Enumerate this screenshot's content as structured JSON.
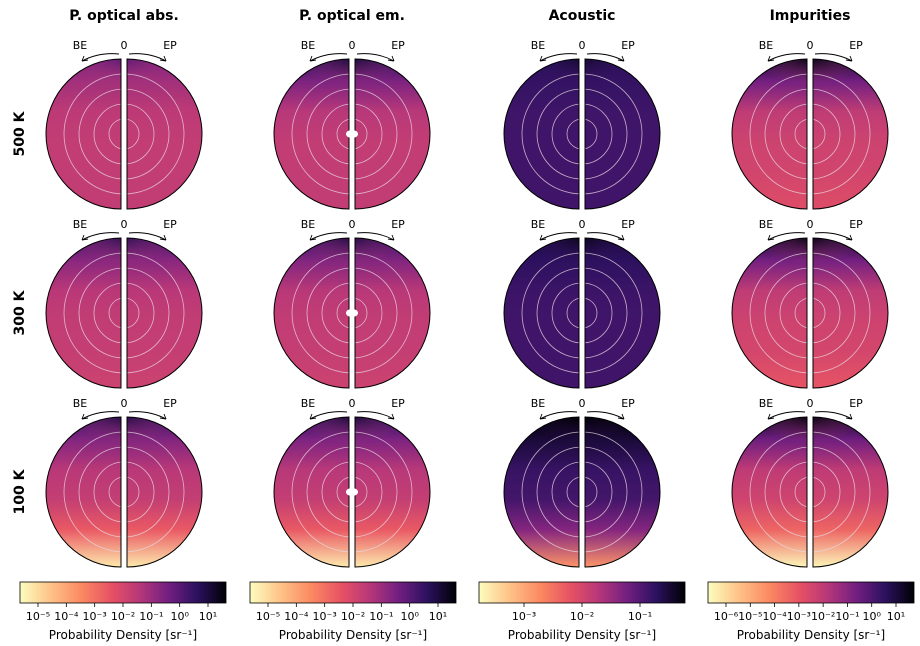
{
  "chart_data": {
    "type": "heatmap",
    "description_labels": {
      "direction_left": "BE",
      "direction_zero": "0",
      "direction_right": "EP"
    },
    "columns": [
      {
        "title": "P. optical abs.",
        "colorbar_ticks": [
          "10⁻⁵",
          "10⁻⁴",
          "10⁻³",
          "10⁻²",
          "10⁻¹",
          "10⁰",
          "10¹"
        ],
        "colorbar_label": "Probability Density [sr⁻¹]"
      },
      {
        "title": "P. optical em.",
        "colorbar_ticks": [
          "10⁻⁵",
          "10⁻⁴",
          "10⁻³",
          "10⁻²",
          "10⁻¹",
          "10⁰",
          "10¹"
        ],
        "colorbar_label": "Probability Density [sr⁻¹]"
      },
      {
        "title": "Acoustic",
        "colorbar_ticks": [
          "10⁻³",
          "10⁻²",
          "10⁻¹"
        ],
        "colorbar_label": "Probability Density [sr⁻¹]"
      },
      {
        "title": "Impurities",
        "colorbar_ticks": [
          "10⁻⁶",
          "10⁻⁵",
          "10⁻⁴",
          "10⁻³",
          "10⁻²",
          "10⁻¹",
          "10⁰",
          "10¹"
        ],
        "colorbar_label": "Probability Density [sr⁻¹]"
      }
    ],
    "rows": [
      {
        "label": "500 K"
      },
      {
        "label": "300 K"
      },
      {
        "label": "100 K"
      }
    ],
    "colormap": "magma_r",
    "colors": {
      "low": "#fcfdbf",
      "mid": "#b73779",
      "high": "#000004",
      "grid": "#e8d6e0"
    },
    "panel_levels": [
      [
        {
          "base": 0.55,
          "top": 0.15,
          "bottom": 0.0
        },
        {
          "base": 0.55,
          "top": 0.3,
          "bottom": 0.0
        },
        {
          "base": 0.82,
          "top": 0.05,
          "bottom": 0.0
        },
        {
          "base": 0.52,
          "top": 0.4,
          "bottom": -0.05
        }
      ],
      [
        {
          "base": 0.55,
          "top": 0.25,
          "bottom": -0.03
        },
        {
          "base": 0.55,
          "top": 0.28,
          "bottom": -0.03
        },
        {
          "base": 0.82,
          "top": 0.08,
          "bottom": 0.0
        },
        {
          "base": 0.52,
          "top": 0.4,
          "bottom": -0.08
        }
      ],
      [
        {
          "base": 0.55,
          "top": 0.28,
          "bottom": -0.5
        },
        {
          "base": 0.55,
          "top": 0.3,
          "bottom": -0.5
        },
        {
          "base": 0.82,
          "top": 0.2,
          "bottom": -0.55
        },
        {
          "base": 0.52,
          "top": 0.42,
          "bottom": -0.5
        }
      ]
    ]
  }
}
